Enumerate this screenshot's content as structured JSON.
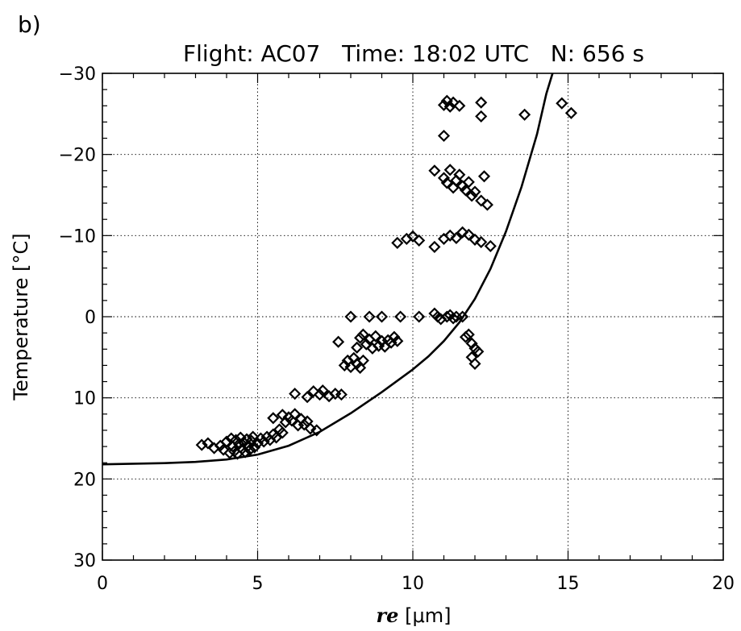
{
  "panel_label": "b)",
  "chart_data": {
    "type": "scatter",
    "title": "Flight: AC07   Time: 18:02 UTC   N: 656 s",
    "xlabel_symbol": "re",
    "xlabel_unit": " [μm]",
    "ylabel": "Temperature [°C]",
    "xlim": [
      0,
      20
    ],
    "ylim": [
      30,
      -30
    ],
    "y_inverted": true,
    "grid": true,
    "xticks": [
      0,
      5,
      10,
      15,
      20
    ],
    "xtick_labels": [
      "0",
      "5",
      "10",
      "15",
      "20"
    ],
    "yticks": [
      -30,
      -20,
      -10,
      0,
      10,
      20,
      30
    ],
    "ytick_labels": [
      "−30",
      "−20",
      "−10",
      "0",
      "10",
      "20",
      "30"
    ],
    "marker": "diamond",
    "series": [
      {
        "points": [
          [
            3.2,
            15.8
          ],
          [
            3.4,
            15.6
          ],
          [
            3.6,
            16.2
          ],
          [
            3.8,
            15.9
          ],
          [
            3.9,
            16.4
          ],
          [
            4.0,
            15.4
          ],
          [
            4.1,
            16.8
          ],
          [
            4.15,
            15.0
          ],
          [
            4.2,
            16.0
          ],
          [
            4.25,
            16.6
          ],
          [
            4.3,
            15.2
          ],
          [
            4.35,
            16.9
          ],
          [
            4.4,
            15.7
          ],
          [
            4.45,
            14.9
          ],
          [
            4.5,
            16.3
          ],
          [
            4.55,
            15.5
          ],
          [
            4.6,
            16.7
          ],
          [
            4.65,
            15.1
          ],
          [
            4.7,
            15.9
          ],
          [
            4.75,
            16.4
          ],
          [
            4.8,
            15.3
          ],
          [
            4.85,
            14.8
          ],
          [
            4.9,
            16.1
          ],
          [
            5.0,
            15.6
          ],
          [
            5.1,
            15.0
          ],
          [
            5.2,
            15.4
          ],
          [
            5.3,
            14.8
          ],
          [
            5.4,
            15.2
          ],
          [
            5.5,
            14.5
          ],
          [
            5.6,
            14.9
          ],
          [
            5.7,
            13.9
          ],
          [
            5.8,
            14.3
          ],
          [
            5.9,
            13.0
          ],
          [
            6.0,
            12.4
          ],
          [
            6.1,
            12.8
          ],
          [
            6.2,
            12.0
          ],
          [
            6.3,
            13.4
          ],
          [
            6.4,
            12.6
          ],
          [
            6.5,
            13.3
          ],
          [
            6.6,
            12.9
          ],
          [
            6.7,
            13.8
          ],
          [
            6.9,
            14.0
          ],
          [
            5.5,
            12.5
          ],
          [
            5.8,
            12.1
          ],
          [
            6.2,
            9.5
          ],
          [
            6.6,
            9.9
          ],
          [
            6.8,
            9.2
          ],
          [
            7.0,
            9.6
          ],
          [
            7.1,
            9.1
          ],
          [
            7.3,
            9.8
          ],
          [
            7.5,
            9.5
          ],
          [
            7.7,
            9.6
          ],
          [
            7.6,
            3.1
          ],
          [
            7.8,
            6.0
          ],
          [
            7.9,
            5.4
          ],
          [
            8.0,
            6.2
          ],
          [
            8.1,
            5.1
          ],
          [
            8.2,
            5.8
          ],
          [
            8.3,
            6.3
          ],
          [
            8.4,
            5.4
          ],
          [
            8.0,
            0.0
          ],
          [
            8.2,
            3.8
          ],
          [
            8.3,
            2.6
          ],
          [
            8.4,
            2.2
          ],
          [
            8.5,
            3.4
          ],
          [
            8.6,
            2.8
          ],
          [
            8.7,
            3.9
          ],
          [
            8.8,
            2.4
          ],
          [
            8.9,
            3.6
          ],
          [
            9.0,
            3.0
          ],
          [
            9.1,
            3.7
          ],
          [
            9.2,
            2.9
          ],
          [
            9.3,
            3.2
          ],
          [
            9.4,
            2.5
          ],
          [
            9.5,
            3.0
          ],
          [
            8.6,
            0.0
          ],
          [
            9.0,
            0.0
          ],
          [
            9.6,
            0.0
          ],
          [
            10.2,
            0.0
          ],
          [
            10.7,
            -0.4
          ],
          [
            10.8,
            0.0
          ],
          [
            10.9,
            0.3
          ],
          [
            11.1,
            0.0
          ],
          [
            11.2,
            -0.2
          ],
          [
            11.3,
            0.2
          ],
          [
            11.4,
            0.0
          ],
          [
            11.6,
            0.0
          ],
          [
            11.7,
            2.5
          ],
          [
            11.8,
            2.2
          ],
          [
            11.9,
            3.3
          ],
          [
            12.0,
            3.9
          ],
          [
            12.1,
            4.3
          ],
          [
            11.9,
            5.0
          ],
          [
            12.0,
            5.8
          ],
          [
            9.5,
            -9.1
          ],
          [
            9.8,
            -9.6
          ],
          [
            10.0,
            -9.9
          ],
          [
            10.2,
            -9.4
          ],
          [
            10.7,
            -8.6
          ],
          [
            11.0,
            -9.6
          ],
          [
            11.2,
            -10.0
          ],
          [
            11.4,
            -9.7
          ],
          [
            11.6,
            -10.4
          ],
          [
            11.8,
            -10.1
          ],
          [
            12.0,
            -9.5
          ],
          [
            12.2,
            -9.2
          ],
          [
            12.5,
            -8.7
          ],
          [
            10.7,
            -18.0
          ],
          [
            11.0,
            -17.1
          ],
          [
            11.1,
            -16.5
          ],
          [
            11.2,
            -18.1
          ],
          [
            11.3,
            -15.9
          ],
          [
            11.4,
            -16.8
          ],
          [
            11.5,
            -17.5
          ],
          [
            11.6,
            -16.1
          ],
          [
            11.7,
            -15.6
          ],
          [
            11.8,
            -16.6
          ],
          [
            11.9,
            -14.9
          ],
          [
            12.0,
            -15.4
          ],
          [
            12.2,
            -14.3
          ],
          [
            12.4,
            -13.8
          ],
          [
            12.3,
            -17.3
          ],
          [
            11.0,
            -22.3
          ],
          [
            11.0,
            -26.1
          ],
          [
            11.1,
            -26.6
          ],
          [
            11.2,
            -25.9
          ],
          [
            11.3,
            -26.4
          ],
          [
            11.5,
            -26.0
          ],
          [
            12.2,
            -26.4
          ],
          [
            12.2,
            -24.7
          ],
          [
            13.6,
            -24.9
          ],
          [
            14.8,
            -26.3
          ],
          [
            15.1,
            -25.1
          ]
        ]
      },
      {
        "line_points": [
          [
            0,
            18.2
          ],
          [
            2,
            18.05
          ],
          [
            3,
            17.9
          ],
          [
            4,
            17.6
          ],
          [
            5,
            17.0
          ],
          [
            6,
            15.9
          ],
          [
            7,
            14.2
          ],
          [
            8,
            11.9
          ],
          [
            9,
            9.3
          ],
          [
            10,
            6.5
          ],
          [
            10.5,
            4.9
          ],
          [
            11,
            3.0
          ],
          [
            11.5,
            0.7
          ],
          [
            12,
            -2.2
          ],
          [
            12.5,
            -5.9
          ],
          [
            13,
            -10.5
          ],
          [
            13.5,
            -16.0
          ],
          [
            14,
            -22.5
          ],
          [
            14.3,
            -27.5
          ],
          [
            14.5,
            -30.0
          ]
        ]
      }
    ]
  }
}
